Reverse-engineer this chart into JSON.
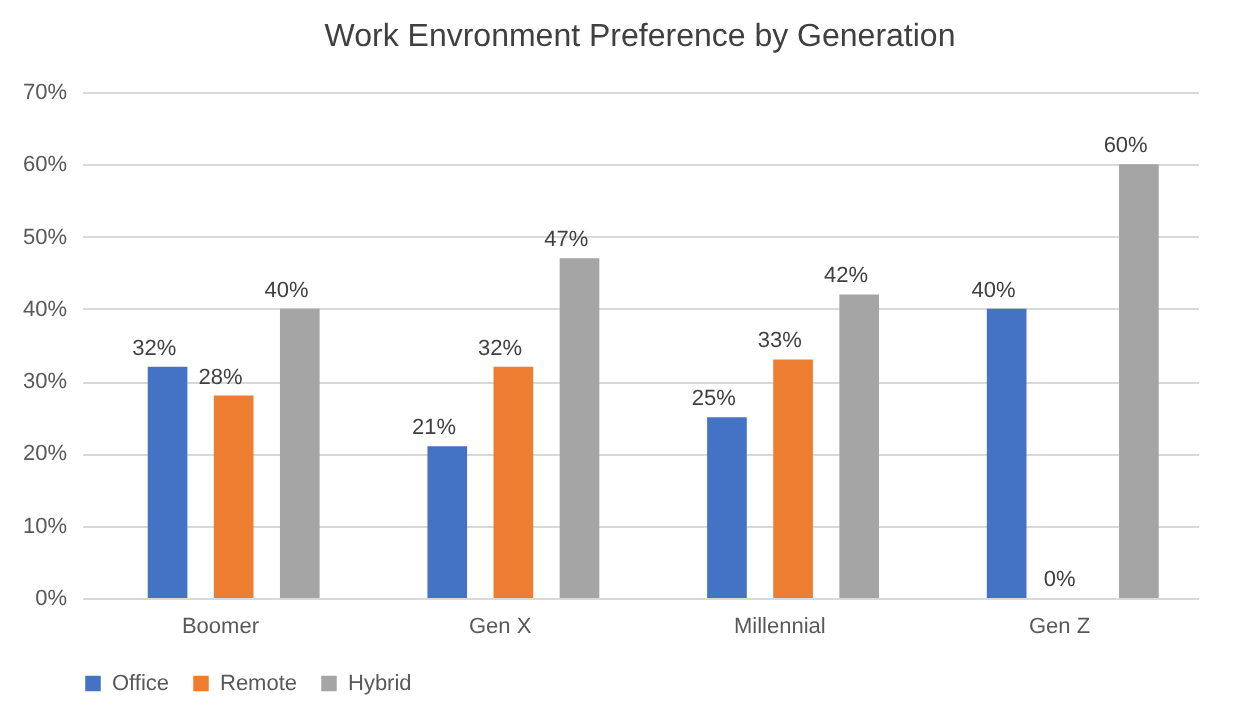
{
  "chart_data": {
    "type": "bar",
    "title": "Work Envronment Preference by Generation",
    "categories": [
      "Boomer",
      "Gen X",
      "Millennial",
      "Gen Z"
    ],
    "series": [
      {
        "name": "Office",
        "color": "#4472c4",
        "values": [
          32,
          21,
          25,
          40
        ],
        "value_labels": [
          "32%",
          "21%",
          "25%",
          "40%"
        ]
      },
      {
        "name": "Remote",
        "color": "#ed7d31",
        "values": [
          28,
          32,
          33,
          0
        ],
        "value_labels": [
          "28%",
          "32%",
          "33%",
          "0%"
        ]
      },
      {
        "name": "Hybrid",
        "color": "#a5a5a5",
        "values": [
          40,
          47,
          42,
          60
        ],
        "value_labels": [
          "40%",
          "47%",
          "42%",
          "60%"
        ]
      }
    ],
    "ylim": [
      0,
      70
    ],
    "yticks": [
      {
        "value": 0,
        "label": "0%"
      },
      {
        "value": 10,
        "label": "10%"
      },
      {
        "value": 20,
        "label": "20%"
      },
      {
        "value": 30,
        "label": "30%"
      },
      {
        "value": 40,
        "label": "40%"
      },
      {
        "value": 50,
        "label": "50%"
      },
      {
        "value": 60,
        "label": "60%"
      },
      {
        "value": 70,
        "label": "70%"
      }
    ],
    "grid": "y",
    "legend": "bottom"
  }
}
